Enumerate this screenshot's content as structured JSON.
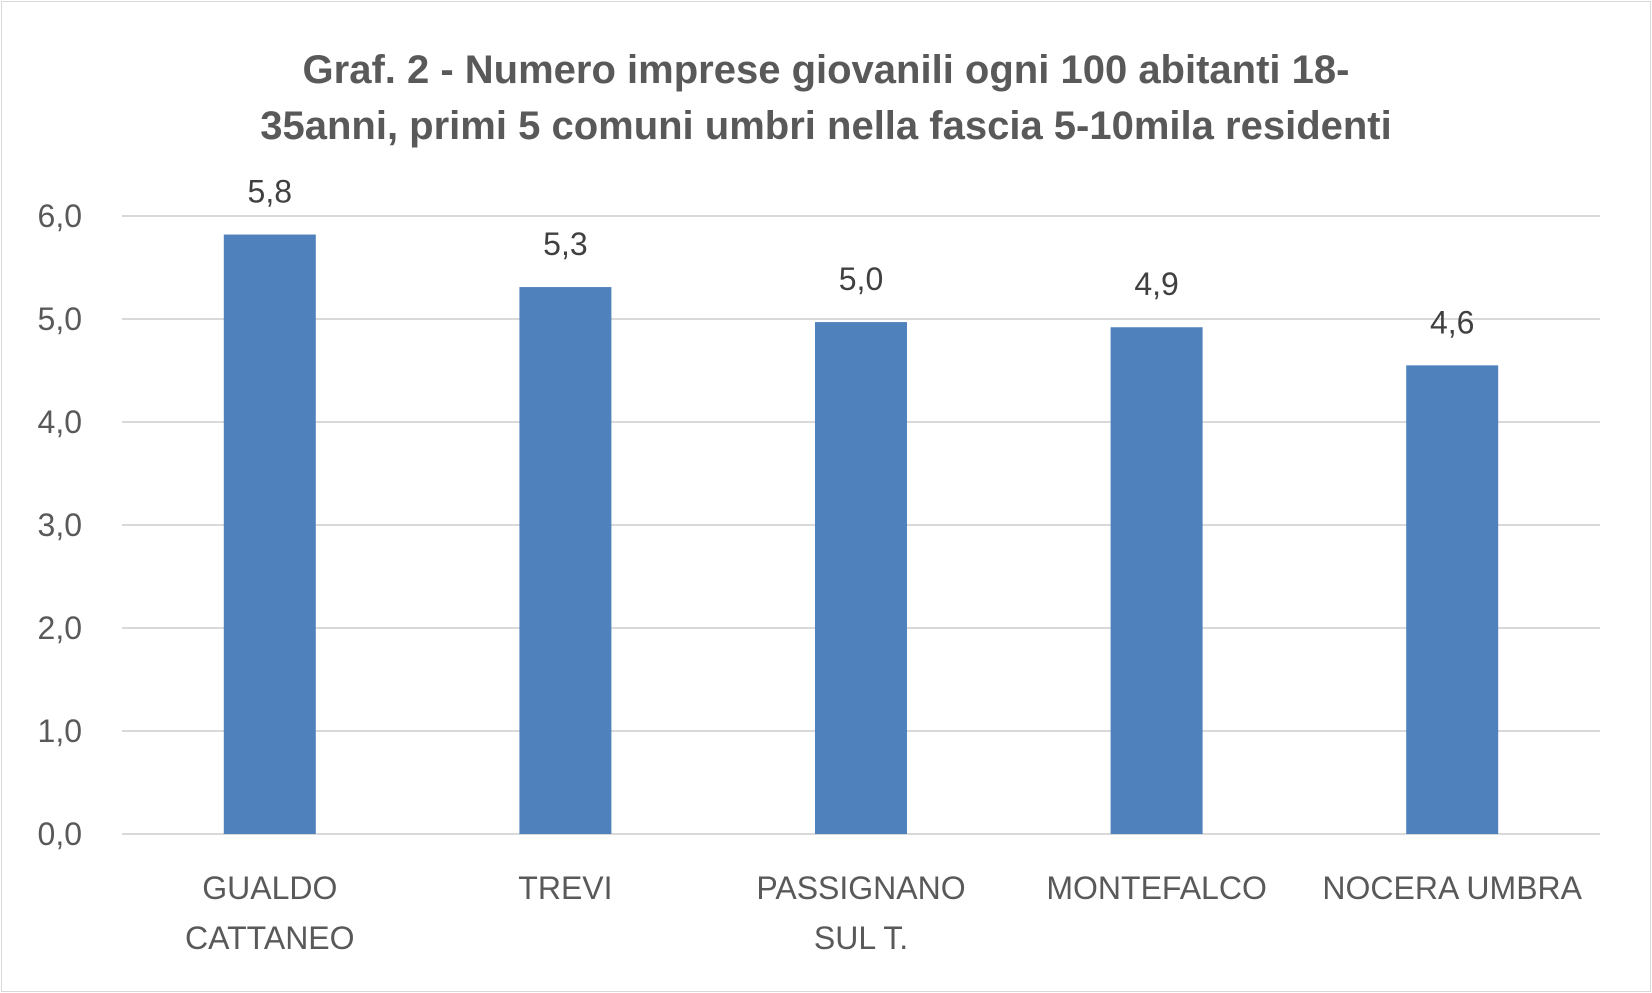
{
  "chart_data": {
    "type": "bar",
    "title_lines": [
      "Graf. 2 - Numero imprese giovanili ogni 100 abitanti 18-",
      "35anni, primi 5 comuni umbri nella fascia 5-10mila residenti"
    ],
    "categories": [
      [
        "GUALDO",
        "CATTANEO"
      ],
      [
        "TREVI"
      ],
      [
        "PASSIGNANO",
        "SUL T."
      ],
      [
        "MONTEFALCO"
      ],
      [
        "NOCERA UMBRA"
      ]
    ],
    "values": [
      5.82,
      5.31,
      4.97,
      4.92,
      4.55
    ],
    "data_labels": [
      "5,8",
      "5,3",
      "5,0",
      "4,9",
      "4,6"
    ],
    "ylim": [
      0,
      6
    ],
    "yticks": [
      0,
      1,
      2,
      3,
      4,
      5,
      6
    ],
    "ytick_labels": [
      "0,0",
      "1,0",
      "2,0",
      "3,0",
      "4,0",
      "5,0",
      "6,0"
    ],
    "xlabel": "",
    "ylabel": "",
    "grid": true,
    "legend": "none",
    "colors": {
      "bar": "#4f81bd",
      "grid": "#d9d9d9",
      "text": "#595959",
      "label": "#404040"
    }
  }
}
